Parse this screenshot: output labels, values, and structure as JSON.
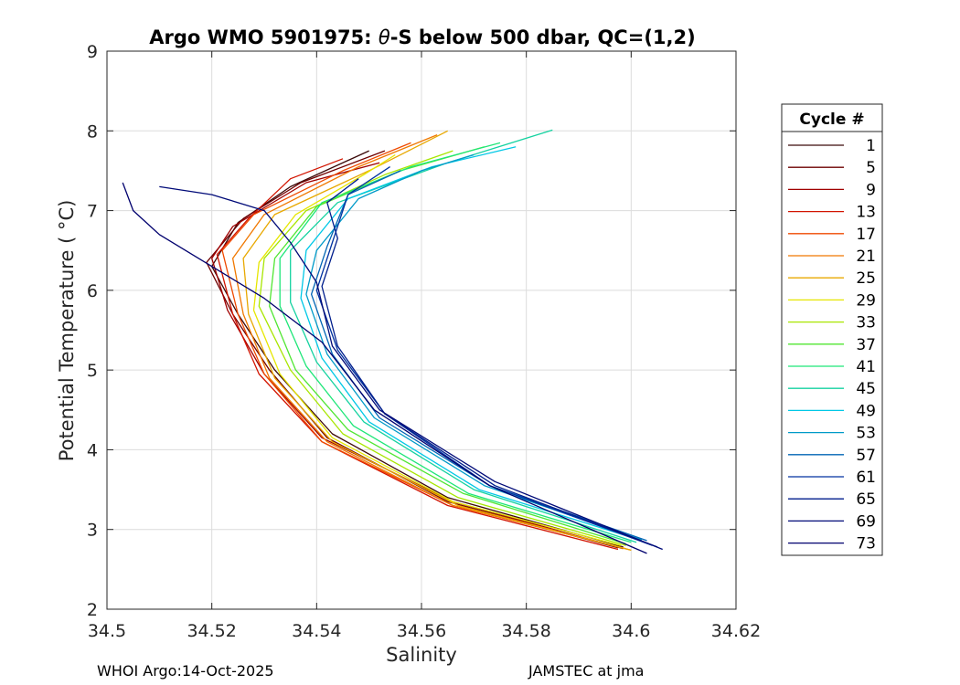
{
  "chart_data": {
    "type": "line",
    "title": "Argo WMO 5901975: θ-S below 500 dbar,  QC=(1,2)",
    "title_prefix": "Argo WMO 5901975: ",
    "title_theta": "θ",
    "title_suffix": "-S below 500 dbar,  QC=(1,2)",
    "xlabel": "Salinity",
    "ylabel": "Potential Temperature ( °C)",
    "xlim": [
      34.5,
      34.62
    ],
    "ylim": [
      2,
      9
    ],
    "xticks": [
      34.5,
      34.52,
      34.54,
      34.56,
      34.58,
      34.6,
      34.62
    ],
    "xtick_labels": [
      "34.5",
      "34.52",
      "34.54",
      "34.56",
      "34.58",
      "34.6",
      "34.62"
    ],
    "yticks": [
      2,
      3,
      4,
      5,
      6,
      7,
      8,
      9
    ],
    "ytick_labels": [
      "2",
      "3",
      "4",
      "5",
      "6",
      "7",
      "8",
      "9"
    ],
    "grid": true,
    "legend_title": "Cycle #",
    "legend_position": "outside-right",
    "series": [
      {
        "name": "1",
        "color": "#3c0a0a",
        "points": [
          [
            34.5985,
            2.78
          ],
          [
            34.565,
            3.4
          ],
          [
            34.543,
            4.2
          ],
          [
            34.532,
            5.0
          ],
          [
            34.525,
            5.7
          ],
          [
            34.52,
            6.3
          ],
          [
            34.525,
            6.85
          ],
          [
            34.535,
            7.3
          ],
          [
            34.55,
            7.75
          ]
        ]
      },
      {
        "name": "5",
        "color": "#6e0000",
        "points": [
          [
            34.5975,
            2.77
          ],
          [
            34.565,
            3.35
          ],
          [
            34.542,
            4.15
          ],
          [
            34.531,
            5.0
          ],
          [
            34.524,
            5.7
          ],
          [
            34.519,
            6.35
          ],
          [
            34.526,
            6.9
          ],
          [
            34.537,
            7.35
          ],
          [
            34.553,
            7.75
          ]
        ]
      },
      {
        "name": "9",
        "color": "#a00000",
        "points": [
          [
            34.5985,
            2.76
          ],
          [
            34.566,
            3.35
          ],
          [
            34.541,
            4.15
          ],
          [
            34.53,
            4.95
          ],
          [
            34.523,
            5.75
          ],
          [
            34.52,
            6.4
          ],
          [
            34.524,
            6.8
          ],
          [
            34.538,
            7.35
          ],
          [
            34.552,
            7.6
          ]
        ]
      },
      {
        "name": "13",
        "color": "#d21400",
        "points": [
          [
            34.5975,
            2.75
          ],
          [
            34.565,
            3.3
          ],
          [
            34.541,
            4.1
          ],
          [
            34.529,
            4.95
          ],
          [
            34.524,
            5.7
          ],
          [
            34.521,
            6.45
          ],
          [
            34.527,
            6.9
          ],
          [
            34.535,
            7.4
          ],
          [
            34.545,
            7.65
          ]
        ]
      },
      {
        "name": "17",
        "color": "#ef4a00",
        "points": [
          [
            34.599,
            2.76
          ],
          [
            34.566,
            3.3
          ],
          [
            34.541,
            4.1
          ],
          [
            34.53,
            4.95
          ],
          [
            34.525,
            5.7
          ],
          [
            34.522,
            6.5
          ],
          [
            34.528,
            6.95
          ],
          [
            34.545,
            7.5
          ],
          [
            34.558,
            7.85
          ]
        ]
      },
      {
        "name": "21",
        "color": "#f07800",
        "points": [
          [
            34.6,
            2.74
          ],
          [
            34.566,
            3.3
          ],
          [
            34.542,
            4.1
          ],
          [
            34.531,
            4.9
          ],
          [
            34.526,
            5.7
          ],
          [
            34.524,
            6.4
          ],
          [
            34.53,
            6.95
          ],
          [
            34.548,
            7.55
          ],
          [
            34.563,
            7.95
          ]
        ]
      },
      {
        "name": "25",
        "color": "#e8a800",
        "points": [
          [
            34.6,
            2.74
          ],
          [
            34.567,
            3.3
          ],
          [
            34.543,
            4.1
          ],
          [
            34.532,
            4.9
          ],
          [
            34.527,
            5.7
          ],
          [
            34.526,
            6.4
          ],
          [
            34.532,
            6.95
          ],
          [
            34.55,
            7.5
          ],
          [
            34.565,
            8.0
          ]
        ]
      },
      {
        "name": "29",
        "color": "#e6e600",
        "points": [
          [
            34.598,
            2.8
          ],
          [
            34.566,
            3.35
          ],
          [
            34.543,
            4.15
          ],
          [
            34.533,
            4.95
          ],
          [
            34.528,
            5.75
          ],
          [
            34.529,
            6.35
          ],
          [
            34.536,
            6.95
          ],
          [
            34.549,
            7.45
          ],
          [
            34.555,
            7.7
          ]
        ]
      },
      {
        "name": "33",
        "color": "#a8e600",
        "points": [
          [
            34.599,
            2.8
          ],
          [
            34.567,
            3.4
          ],
          [
            34.545,
            4.2
          ],
          [
            34.535,
            5.0
          ],
          [
            34.529,
            5.8
          ],
          [
            34.53,
            6.4
          ],
          [
            34.538,
            7.0
          ],
          [
            34.553,
            7.45
          ],
          [
            34.566,
            7.75
          ]
        ]
      },
      {
        "name": "37",
        "color": "#50e632",
        "points": [
          [
            34.599,
            2.82
          ],
          [
            34.568,
            3.45
          ],
          [
            34.546,
            4.25
          ],
          [
            34.536,
            5.0
          ],
          [
            34.531,
            5.8
          ],
          [
            34.532,
            6.4
          ],
          [
            34.54,
            7.05
          ],
          [
            34.556,
            7.5
          ],
          [
            34.572,
            7.8
          ]
        ]
      },
      {
        "name": "41",
        "color": "#1ee678",
        "points": [
          [
            34.6,
            2.84
          ],
          [
            34.569,
            3.45
          ],
          [
            34.547,
            4.3
          ],
          [
            34.538,
            5.05
          ],
          [
            34.533,
            5.8
          ],
          [
            34.533,
            6.4
          ],
          [
            34.541,
            7.1
          ],
          [
            34.558,
            7.55
          ],
          [
            34.575,
            7.85
          ]
        ]
      },
      {
        "name": "45",
        "color": "#14d2a0",
        "points": [
          [
            34.601,
            2.84
          ],
          [
            34.57,
            3.5
          ],
          [
            34.549,
            4.35
          ],
          [
            34.54,
            5.1
          ],
          [
            34.535,
            5.85
          ],
          [
            34.535,
            6.5
          ],
          [
            34.544,
            7.1
          ],
          [
            34.565,
            7.6
          ],
          [
            34.585,
            8.01
          ]
        ]
      },
      {
        "name": "49",
        "color": "#00c8e6",
        "points": [
          [
            34.602,
            2.86
          ],
          [
            34.571,
            3.5
          ],
          [
            34.55,
            4.35
          ],
          [
            34.541,
            5.15
          ],
          [
            34.537,
            5.9
          ],
          [
            34.538,
            6.5
          ],
          [
            34.546,
            7.15
          ],
          [
            34.562,
            7.55
          ],
          [
            34.578,
            7.8
          ]
        ]
      },
      {
        "name": "53",
        "color": "#009ac8",
        "points": [
          [
            34.602,
            2.87
          ],
          [
            34.572,
            3.55
          ],
          [
            34.551,
            4.4
          ],
          [
            34.542,
            5.2
          ],
          [
            34.538,
            5.95
          ],
          [
            34.54,
            6.5
          ],
          [
            34.548,
            7.15
          ],
          [
            34.56,
            7.5
          ],
          [
            34.57,
            7.7
          ]
        ]
      },
      {
        "name": "57",
        "color": "#0064b4",
        "points": [
          [
            34.603,
            2.86
          ],
          [
            34.573,
            3.55
          ],
          [
            34.552,
            4.4
          ],
          [
            34.543,
            5.2
          ],
          [
            34.539,
            5.95
          ],
          [
            34.542,
            6.55
          ],
          [
            34.546,
            7.2
          ],
          [
            34.556,
            7.5
          ]
        ]
      },
      {
        "name": "61",
        "color": "#0032a0",
        "points": [
          [
            34.604,
            2.8
          ],
          [
            34.573,
            3.55
          ],
          [
            34.553,
            4.45
          ],
          [
            34.544,
            5.25
          ],
          [
            34.54,
            6.0
          ],
          [
            34.543,
            6.6
          ],
          [
            34.546,
            7.2
          ],
          [
            34.554,
            7.55
          ]
        ]
      },
      {
        "name": "65",
        "color": "#001e8c",
        "points": [
          [
            34.605,
            2.78
          ],
          [
            34.574,
            3.55
          ],
          [
            34.553,
            4.45
          ],
          [
            34.544,
            5.3
          ],
          [
            34.541,
            6.05
          ],
          [
            34.544,
            6.65
          ],
          [
            34.542,
            7.1
          ],
          [
            34.548,
            7.4
          ]
        ]
      },
      {
        "name": "69",
        "color": "#000a78",
        "points": [
          [
            34.606,
            2.75
          ],
          [
            34.574,
            3.6
          ],
          [
            34.552,
            4.5
          ],
          [
            34.543,
            5.3
          ],
          [
            34.54,
            6.1
          ],
          [
            34.535,
            6.6
          ],
          [
            34.53,
            7.0
          ],
          [
            34.52,
            7.2
          ],
          [
            34.51,
            7.3
          ]
        ]
      },
      {
        "name": "73",
        "color": "#00006e",
        "points": [
          [
            34.603,
            2.7
          ],
          [
            34.573,
            3.55
          ],
          [
            34.551,
            4.5
          ],
          [
            34.541,
            5.35
          ],
          [
            34.53,
            5.9
          ],
          [
            34.52,
            6.3
          ],
          [
            34.51,
            6.7
          ],
          [
            34.505,
            7.0
          ],
          [
            34.503,
            7.35
          ]
        ]
      }
    ]
  },
  "footer": {
    "left": "WHOI Argo:14-Oct-2025",
    "right": "JAMSTEC at jma"
  }
}
